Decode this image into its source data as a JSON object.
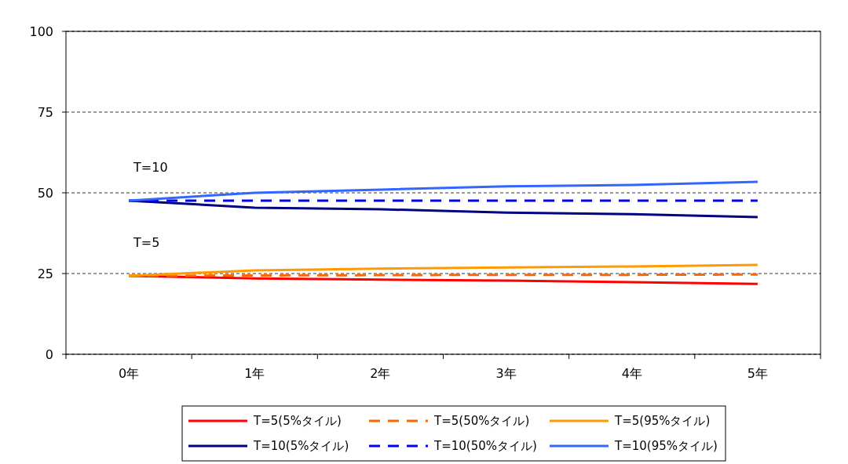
{
  "chart_data": {
    "type": "line",
    "categories": [
      "0年",
      "1年",
      "2年",
      "3年",
      "4年",
      "5年"
    ],
    "series": [
      {
        "name": "T=5(5%タイル)",
        "color": "#ff0000",
        "line_style": "solid",
        "values": [
          24.3,
          23.5,
          23.1,
          22.8,
          22.3,
          21.8
        ]
      },
      {
        "name": "T=5(50%タイル)",
        "color": "#ff6600",
        "line_style": "dashed",
        "values": [
          24.3,
          24.4,
          24.5,
          24.6,
          24.6,
          24.7
        ]
      },
      {
        "name": "T=5(95%タイル)",
        "color": "#ff9900",
        "line_style": "solid",
        "values": [
          24.3,
          26.0,
          26.5,
          26.9,
          27.2,
          27.7
        ]
      },
      {
        "name": "T=10(5%タイル)",
        "color": "#000080",
        "line_style": "solid",
        "values": [
          47.6,
          45.4,
          44.9,
          43.9,
          43.4,
          42.5
        ]
      },
      {
        "name": "T=10(50%タイル)",
        "color": "#0000ff",
        "line_style": "dashed",
        "values": [
          47.6,
          47.6,
          47.6,
          47.6,
          47.6,
          47.6
        ]
      },
      {
        "name": "T=10(95%タイル)",
        "color": "#3366ff",
        "line_style": "solid",
        "values": [
          47.6,
          50.0,
          51.0,
          52.0,
          52.4,
          53.4
        ]
      }
    ],
    "ylim": [
      0,
      100
    ],
    "yticks": [
      0,
      25,
      50,
      75,
      100
    ],
    "grid": "y",
    "legend": "bottom",
    "marker": "none",
    "annotations": [
      "T=10",
      "T=5"
    ]
  }
}
